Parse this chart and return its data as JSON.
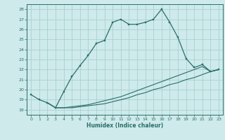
{
  "xlabel": "Humidex (Indice chaleur)",
  "xlim": [
    -0.5,
    23.5
  ],
  "ylim": [
    17.5,
    28.5
  ],
  "xticks": [
    0,
    1,
    2,
    3,
    4,
    5,
    6,
    7,
    8,
    9,
    10,
    11,
    12,
    13,
    14,
    15,
    16,
    17,
    18,
    19,
    20,
    21,
    22,
    23
  ],
  "yticks": [
    18,
    19,
    20,
    21,
    22,
    23,
    24,
    25,
    26,
    27,
    28
  ],
  "bg_color": "#ceeaea",
  "grid_color": "#a8d0d0",
  "line_color": "#2a6e6a",
  "line1_x": [
    0,
    1,
    2,
    3,
    4,
    5,
    6,
    7,
    8,
    9,
    10,
    11,
    12,
    13,
    14,
    15,
    16,
    17,
    18,
    19,
    20,
    21,
    22,
    23
  ],
  "line1_y": [
    19.5,
    19.0,
    18.7,
    18.2,
    19.8,
    21.3,
    22.4,
    23.4,
    24.6,
    24.9,
    26.7,
    27.0,
    26.5,
    26.5,
    26.7,
    27.0,
    28.0,
    26.7,
    25.2,
    23.1,
    22.2,
    22.5,
    21.8,
    22.0
  ],
  "line2_x": [
    2,
    3,
    4,
    5,
    6,
    7,
    8,
    9,
    10,
    11,
    12,
    13,
    14,
    15,
    16,
    17,
    18,
    19,
    20,
    21,
    22,
    23
  ],
  "line2_y": [
    18.7,
    18.2,
    18.2,
    18.3,
    18.4,
    18.5,
    18.7,
    18.9,
    19.1,
    19.3,
    19.6,
    19.9,
    20.2,
    20.5,
    20.8,
    21.1,
    21.4,
    21.7,
    22.0,
    22.3,
    21.8,
    22.0
  ],
  "line3_x": [
    2,
    3,
    4,
    5,
    6,
    7,
    8,
    9,
    10,
    11,
    12,
    13,
    14,
    15,
    16,
    17,
    18,
    19,
    20,
    21,
    22,
    23
  ],
  "line3_y": [
    18.7,
    18.2,
    18.2,
    18.2,
    18.3,
    18.4,
    18.5,
    18.6,
    18.8,
    19.0,
    19.2,
    19.5,
    19.7,
    20.0,
    20.2,
    20.5,
    20.7,
    21.0,
    21.2,
    21.5,
    21.8,
    22.0
  ]
}
